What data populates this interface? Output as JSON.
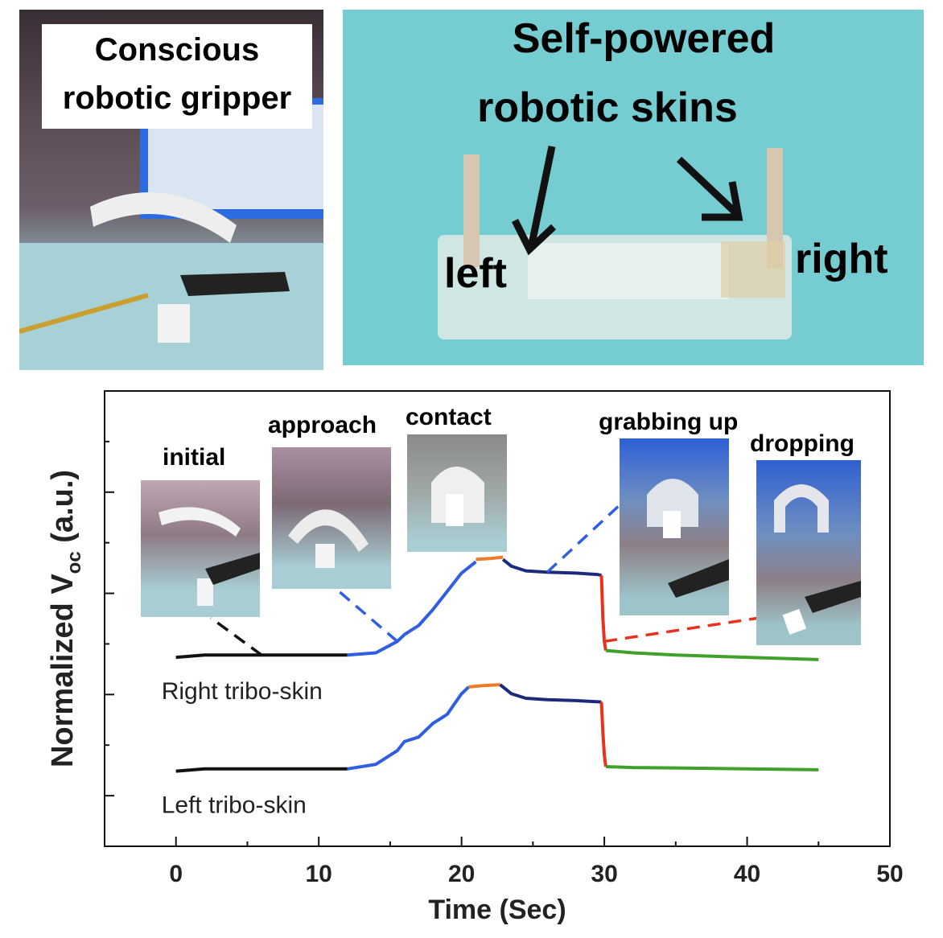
{
  "panel_a": {
    "label_line1": "Conscious",
    "label_line2": "robotic gripper"
  },
  "panel_b": {
    "label_line1": "Self-powered",
    "label_line2": "robotic skins",
    "left_label": "left",
    "right_label": "right"
  },
  "insets": [
    {
      "label": "initial"
    },
    {
      "label": "approach"
    },
    {
      "label": "contact"
    },
    {
      "label": "grabbing up"
    },
    {
      "label": "dropping"
    }
  ],
  "colors": {
    "approach": "#2f5fe0",
    "contact": "#f07a2a",
    "grabbing": "#1c2a7a",
    "dropping": "#e8321e",
    "after": "#3fa02a",
    "initial": "#111111",
    "photo_bg": "#76cdd1"
  },
  "chart_data": {
    "type": "line",
    "xlabel": "Time (Sec)",
    "ylabel_main": "Normalized V",
    "ylabel_sub": "oc",
    "ylabel_unit": "(a.u.)",
    "xlim": [
      -5,
      50
    ],
    "xticks": [
      0,
      10,
      20,
      30,
      40,
      50
    ],
    "ylim": [
      0,
      1
    ],
    "y_tick_labels_shown": false,
    "series": [
      {
        "name": "Right tribo-skin",
        "segments": [
          {
            "phase": "initial",
            "x": [
              0,
              2,
              4,
              6,
              8,
              10,
              12
            ],
            "y": [
              0.415,
              0.42,
              0.42,
              0.42,
              0.42,
              0.42,
              0.42
            ]
          },
          {
            "phase": "approach",
            "x": [
              12,
              14,
              15.5,
              16,
              17,
              18,
              19,
              20,
              21
            ],
            "y": [
              0.42,
              0.425,
              0.45,
              0.465,
              0.485,
              0.52,
              0.56,
              0.6,
              0.625
            ]
          },
          {
            "phase": "contact",
            "x": [
              21,
              22,
              22.9
            ],
            "y": [
              0.63,
              0.632,
              0.635
            ]
          },
          {
            "phase": "grabbing",
            "x": [
              22.9,
              23.5,
              24.5,
              26,
              28,
              29.5,
              29.8
            ],
            "y": [
              0.63,
              0.615,
              0.605,
              0.602,
              0.6,
              0.597,
              0.595
            ]
          },
          {
            "phase": "dropping",
            "x": [
              29.8,
              29.9,
              30,
              30.1
            ],
            "y": [
              0.595,
              0.5,
              0.45,
              0.43
            ]
          },
          {
            "phase": "after",
            "x": [
              30.1,
              32,
              35,
              40,
              45
            ],
            "y": [
              0.43,
              0.425,
              0.42,
              0.415,
              0.41
            ]
          }
        ]
      },
      {
        "name": "Left tribo-skin",
        "segments": [
          {
            "phase": "initial",
            "x": [
              0,
              2,
              4,
              6,
              8,
              10,
              12
            ],
            "y": [
              0.165,
              0.17,
              0.17,
              0.17,
              0.17,
              0.17,
              0.17
            ]
          },
          {
            "phase": "approach",
            "x": [
              12,
              14,
              15.5,
              16,
              17,
              18,
              19,
              20,
              20.5
            ],
            "y": [
              0.17,
              0.18,
              0.21,
              0.23,
              0.24,
              0.27,
              0.29,
              0.335,
              0.35
            ]
          },
          {
            "phase": "contact",
            "x": [
              20.5,
              21.5,
              22.7
            ],
            "y": [
              0.35,
              0.353,
              0.355
            ]
          },
          {
            "phase": "grabbing",
            "x": [
              22.7,
              23.5,
              24.5,
              26,
              28,
              29.8
            ],
            "y": [
              0.355,
              0.335,
              0.325,
              0.322,
              0.32,
              0.317
            ]
          },
          {
            "phase": "dropping",
            "x": [
              29.8,
              29.9,
              30,
              30.1
            ],
            "y": [
              0.317,
              0.25,
              0.2,
              0.175
            ]
          },
          {
            "phase": "after",
            "x": [
              30.1,
              32,
              35,
              40,
              45
            ],
            "y": [
              0.175,
              0.173,
              0.172,
              0.17,
              0.168
            ]
          }
        ]
      }
    ]
  }
}
